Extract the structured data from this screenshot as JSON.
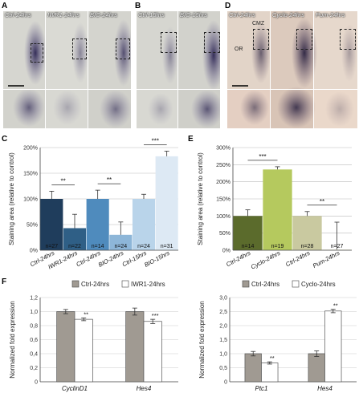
{
  "panels": {
    "A": {
      "letter": "A",
      "labels": [
        "Ctrl-24hrs",
        "IWR1-24hrs",
        "BIO-24hrs"
      ]
    },
    "B": {
      "letter": "B",
      "labels": [
        "Ctrl-15hrs",
        "BIO-15hrs"
      ]
    },
    "C": {
      "letter": "C"
    },
    "D": {
      "letter": "D",
      "labels": [
        "Ctrl-24hrs",
        "Cyclo-24hrs",
        "Pum-24hrs"
      ],
      "annotations": [
        "CMZ",
        "OR"
      ]
    },
    "E": {
      "letter": "E"
    },
    "F": {
      "letter": "F"
    }
  },
  "chart_data": [
    {
      "id": "C",
      "type": "bar",
      "ylabel": "Staining area (relative to control)",
      "yticks": [
        "0%",
        "50%",
        "100%",
        "150%",
        "200%"
      ],
      "ylim": [
        0,
        200
      ],
      "categories": [
        "Ctrl-24hrs",
        "IWR1-24hrs",
        "Ctrl-24hrs",
        "BIO-24hrs",
        "Ctrl-15hrs",
        "BIO-15hrs"
      ],
      "values": [
        100,
        43,
        100,
        30,
        100,
        183
      ],
      "errors": [
        15,
        27,
        17,
        25,
        9,
        10
      ],
      "n_labels": [
        "n=27",
        "n=22",
        "n=14",
        "n=24",
        "n=24",
        "n=31"
      ],
      "colors": [
        "#1f3d5c",
        "#2f5f86",
        "#4f8bbd",
        "#8db6d8",
        "#b9d4ea",
        "#dde9f4"
      ],
      "significance": [
        {
          "pair": [
            0,
            1
          ],
          "label": "**"
        },
        {
          "pair": [
            2,
            3
          ],
          "label": "**"
        },
        {
          "pair": [
            4,
            5
          ],
          "label": "***"
        }
      ]
    },
    {
      "id": "E",
      "type": "bar",
      "ylabel": "Staining area (relative to control)",
      "yticks": [
        "0%",
        "50%",
        "100%",
        "150%",
        "200%",
        "250%",
        "300%"
      ],
      "ylim": [
        0,
        300
      ],
      "categories": [
        "Ctrl-24hrs",
        "Cyclo-24hrs",
        "Ctrl-24hrs",
        "Pum-24hrs"
      ],
      "values": [
        100,
        236,
        100,
        2
      ],
      "errors": [
        18,
        8,
        13,
        80
      ],
      "n_labels": [
        "n=14",
        "n=19",
        "n=28",
        "n=27"
      ],
      "colors": [
        "#5b6b2c",
        "#b5c95e",
        "#c9c9a0",
        "#ececd8"
      ],
      "significance": [
        {
          "pair": [
            0,
            1
          ],
          "label": "***"
        },
        {
          "pair": [
            2,
            3
          ],
          "label": "**"
        }
      ]
    },
    {
      "id": "F1",
      "type": "bar",
      "ylabel": "Normalized fold expression",
      "yticks": [
        "0",
        "0,2",
        "0,4",
        "0,6",
        "0,8",
        "1,0",
        "1,2"
      ],
      "ylim": [
        0,
        1.2
      ],
      "legend": [
        "Ctrl-24hrs",
        "IWR1-24hrs"
      ],
      "categories": [
        "CyclinD1",
        "Hes4"
      ],
      "series": [
        {
          "name": "Ctrl-24hrs",
          "values": [
            1.0,
            1.0
          ],
          "errors": [
            0.03,
            0.05
          ],
          "color": "#a09a92"
        },
        {
          "name": "IWR1-24hrs",
          "values": [
            0.89,
            0.86
          ],
          "errors": [
            0.02,
            0.03
          ],
          "color": "#ffffff"
        }
      ],
      "significance": [
        "**",
        "***"
      ]
    },
    {
      "id": "F2",
      "type": "bar",
      "ylabel": "Normalized fold expression",
      "yticks": [
        "0",
        "0,5",
        "1,0",
        "1,5",
        "2,0",
        "2,5",
        "3,0"
      ],
      "ylim": [
        0,
        3.0
      ],
      "legend": [
        "Ctrl-24hrs",
        "Cyclo-24hrs"
      ],
      "categories": [
        "Ptc1",
        "Hes4"
      ],
      "series": [
        {
          "name": "Ctrl-24hrs",
          "values": [
            1.0,
            1.0
          ],
          "errors": [
            0.08,
            0.1
          ],
          "color": "#a09a92"
        },
        {
          "name": "Cyclo-24hrs",
          "values": [
            0.67,
            2.52
          ],
          "errors": [
            0.04,
            0.06
          ],
          "color": "#ffffff"
        }
      ],
      "significance": [
        "**",
        "**"
      ]
    }
  ]
}
